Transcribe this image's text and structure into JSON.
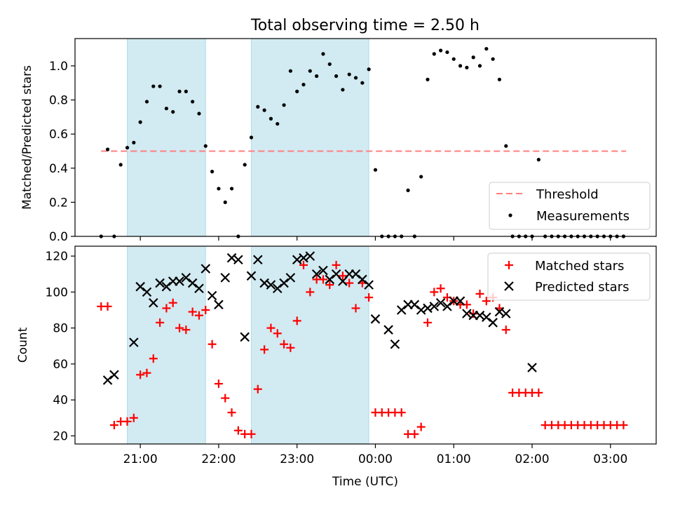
{
  "chart_data": [
    {
      "type": "scatter",
      "title": "Total observing time = 2.50 h",
      "ylabel": "Matched/Predicted stars",
      "xlim": [
        "20:10",
        "03:35"
      ],
      "ylim": [
        0,
        1.16
      ],
      "x_ticks": [
        "21:00",
        "22:00",
        "23:00",
        "00:00",
        "01:00",
        "02:00",
        "03:00"
      ],
      "y_ticks": [
        "0.0",
        "0.2",
        "0.4",
        "0.6",
        "0.8",
        "1.0"
      ],
      "shaded_intervals": [
        [
          "20:50",
          "21:50"
        ],
        [
          "22:25",
          "23:55"
        ]
      ],
      "shade_color": "#add8e6",
      "legend_position": "lower right",
      "series": [
        {
          "name": "Threshold",
          "style": "dashed-line",
          "color": "#ff7f7f",
          "x": [
            "20:30",
            "03:12"
          ],
          "y": [
            0.5,
            0.5
          ]
        },
        {
          "name": "Measurements",
          "style": "dot",
          "color": "#000000",
          "x": [
            "20:30",
            "20:35",
            "20:40",
            "20:45",
            "20:50",
            "20:55",
            "21:00",
            "21:05",
            "21:10",
            "21:15",
            "21:20",
            "21:25",
            "21:30",
            "21:35",
            "21:40",
            "21:45",
            "21:50",
            "21:55",
            "22:00",
            "22:05",
            "22:10",
            "22:15",
            "22:20",
            "22:25",
            "22:30",
            "22:35",
            "22:40",
            "22:45",
            "22:50",
            "22:55",
            "23:00",
            "23:05",
            "23:10",
            "23:15",
            "23:20",
            "23:25",
            "23:30",
            "23:35",
            "23:40",
            "23:45",
            "23:50",
            "23:55",
            "00:00",
            "00:05",
            "00:10",
            "00:15",
            "00:20",
            "00:25",
            "00:30",
            "00:35",
            "00:40",
            "00:45",
            "00:50",
            "00:55",
            "01:00",
            "01:05",
            "01:10",
            "01:15",
            "01:20",
            "01:25",
            "01:30",
            "01:35",
            "01:40",
            "01:45",
            "01:50",
            "01:55",
            "02:00",
            "02:05",
            "02:10",
            "02:15",
            "02:20",
            "02:25",
            "02:30",
            "02:35",
            "02:40",
            "02:45",
            "02:50",
            "02:55",
            "03:00",
            "03:05",
            "03:10"
          ],
          "y": [
            0.0,
            0.51,
            0.0,
            0.42,
            0.52,
            0.55,
            0.67,
            0.79,
            0.88,
            0.88,
            0.75,
            0.73,
            0.85,
            0.85,
            0.79,
            0.72,
            0.53,
            0.38,
            0.28,
            0.2,
            0.28,
            0.0,
            0.42,
            0.58,
            0.76,
            0.74,
            0.69,
            0.66,
            0.77,
            0.97,
            0.85,
            0.89,
            0.97,
            0.94,
            1.07,
            1.01,
            0.94,
            0.86,
            0.95,
            0.93,
            0.9,
            0.98,
            0.39,
            0.0,
            0.0,
            0.0,
            0.0,
            0.27,
            0.0,
            0.35,
            0.92,
            1.07,
            1.09,
            1.08,
            1.04,
            1.0,
            0.99,
            1.05,
            1.0,
            1.1,
            1.04,
            0.92,
            0.53,
            0.0,
            0.0,
            0.0,
            0.0,
            0.45,
            0.0,
            0.0,
            0.0,
            0.0,
            0.0,
            0.0,
            0.0,
            0.0,
            0.0,
            0.0,
            0.0,
            0.0,
            0.0
          ]
        }
      ]
    },
    {
      "type": "scatter",
      "xlabel": "Time (UTC)",
      "ylabel": "Count",
      "xlim": [
        "20:10",
        "03:35"
      ],
      "ylim": [
        15.5,
        125.5
      ],
      "x_ticks": [
        "21:00",
        "22:00",
        "23:00",
        "00:00",
        "01:00",
        "02:00",
        "03:00"
      ],
      "y_ticks": [
        "20",
        "40",
        "60",
        "80",
        "100",
        "120"
      ],
      "shaded_intervals": [
        [
          "20:50",
          "21:50"
        ],
        [
          "22:25",
          "23:55"
        ]
      ],
      "legend_position": "upper right",
      "series": [
        {
          "name": "Matched stars",
          "marker": "plus",
          "color": "#ff0000",
          "x": [
            "20:30",
            "20:35",
            "20:40",
            "20:45",
            "20:50",
            "20:55",
            "21:00",
            "21:05",
            "21:10",
            "21:15",
            "21:20",
            "21:25",
            "21:30",
            "21:35",
            "21:40",
            "21:45",
            "21:50",
            "21:55",
            "22:00",
            "22:05",
            "22:10",
            "22:15",
            "22:20",
            "22:25",
            "22:30",
            "22:35",
            "22:40",
            "22:45",
            "22:50",
            "22:55",
            "23:00",
            "23:05",
            "23:10",
            "23:15",
            "23:20",
            "23:25",
            "23:30",
            "23:35",
            "23:40",
            "23:45",
            "23:50",
            "23:55",
            "00:00",
            "00:05",
            "00:10",
            "00:15",
            "00:20",
            "00:25",
            "00:30",
            "00:35",
            "00:40",
            "00:45",
            "00:50",
            "00:55",
            "01:00",
            "01:05",
            "01:10",
            "01:15",
            "01:20",
            "01:25",
            "01:30",
            "01:35",
            "01:40",
            "01:45",
            "01:50",
            "01:55",
            "02:00",
            "02:05",
            "02:10",
            "02:15",
            "02:20",
            "02:25",
            "02:30",
            "02:35",
            "02:40",
            "02:45",
            "02:50",
            "02:55",
            "03:00",
            "03:05",
            "03:10"
          ],
          "y": [
            92,
            92,
            26,
            28,
            28,
            30,
            54,
            55,
            63,
            83,
            91,
            94,
            80,
            79,
            89,
            87,
            90,
            71,
            49,
            41,
            33,
            23,
            21,
            21,
            46,
            68,
            80,
            77,
            71,
            69,
            84,
            115,
            100,
            107,
            107,
            104,
            115,
            109,
            105,
            91,
            105,
            97,
            33,
            33,
            33,
            33,
            33,
            21,
            21,
            25,
            83,
            100,
            102,
            97,
            95,
            93,
            93,
            88,
            99,
            95,
            97,
            91,
            79,
            44,
            44,
            44,
            44,
            44,
            26,
            26,
            26,
            26,
            26,
            26,
            26,
            26,
            26,
            26,
            26,
            26,
            26
          ]
        },
        {
          "name": "Predicted stars",
          "marker": "x",
          "color": "#000000",
          "x": [
            "20:35",
            "20:40",
            "20:55",
            "21:00",
            "21:05",
            "21:10",
            "21:15",
            "21:20",
            "21:25",
            "21:30",
            "21:35",
            "21:40",
            "21:45",
            "21:50",
            "21:55",
            "22:00",
            "22:05",
            "22:10",
            "22:15",
            "22:20",
            "22:25",
            "22:30",
            "22:35",
            "22:40",
            "22:45",
            "22:50",
            "22:55",
            "23:00",
            "23:05",
            "23:10",
            "23:15",
            "23:20",
            "23:25",
            "23:30",
            "23:35",
            "23:40",
            "23:45",
            "23:50",
            "23:55",
            "00:00",
            "00:10",
            "00:15",
            "00:20",
            "00:25",
            "00:30",
            "00:35",
            "00:40",
            "00:45",
            "00:50",
            "00:55",
            "01:00",
            "01:05",
            "01:10",
            "01:15",
            "01:20",
            "01:25",
            "01:30",
            "01:35",
            "01:40",
            "02:00"
          ],
          "y": [
            51,
            54,
            72,
            103,
            100,
            94,
            105,
            103,
            106,
            106,
            108,
            105,
            102,
            113,
            98,
            93,
            108,
            119,
            118,
            75,
            109,
            118,
            105,
            104,
            102,
            105,
            108,
            118,
            119,
            120,
            110,
            112,
            107,
            110,
            106,
            110,
            110,
            107,
            104,
            85,
            79,
            71,
            90,
            93,
            93,
            90,
            91,
            92,
            94,
            92,
            95,
            95,
            88,
            87,
            87,
            86,
            83,
            89,
            88,
            58
          ]
        }
      ]
    }
  ]
}
